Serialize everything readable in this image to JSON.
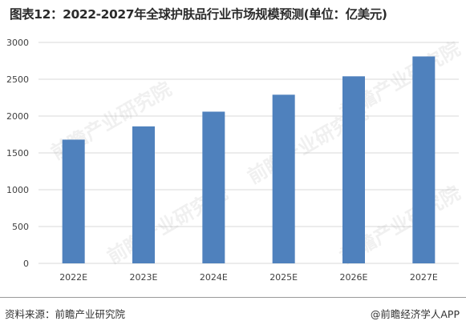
{
  "title": "图表12：2022-2027年全球护肤品行业市场规模预测(单位：亿美元)",
  "source_text": "资料来源：前瞻产业研究院",
  "credit_text": "@前瞻经济学人APP",
  "watermark_text": "前瞻产业研究院",
  "colors": {
    "bar": "#4f81bd",
    "grid": "#d9d9d9",
    "axis_text": "#404040",
    "divider": "#9a9a9a"
  },
  "chart_data": {
    "type": "bar",
    "title": "图表12：2022-2027年全球护肤品行业市场规模预测(单位：亿美元)",
    "categories": [
      "2022E",
      "2023E",
      "2024E",
      "2025E",
      "2026E",
      "2027E"
    ],
    "values": [
      1680,
      1860,
      2060,
      2290,
      2540,
      2810
    ],
    "ylim": [
      0,
      3000
    ],
    "yticks": [
      0,
      500,
      1000,
      1500,
      2000,
      2500,
      3000
    ],
    "xlabel": "",
    "ylabel": "",
    "grid": true,
    "legend": "none"
  }
}
